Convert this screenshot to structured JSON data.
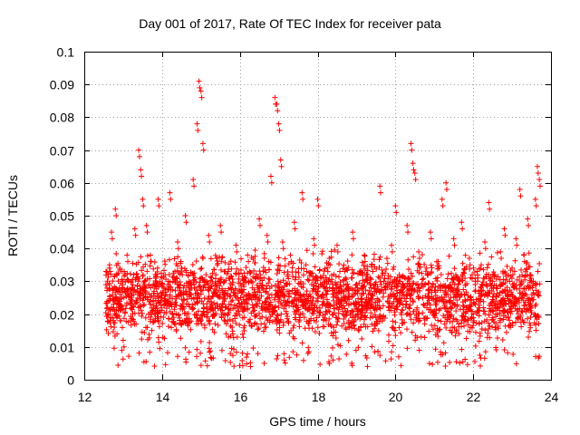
{
  "chart_data": {
    "type": "scatter",
    "title": "Day 001 of 2017, Rate Of TEC Index for receiver pata",
    "xlabel": "GPS time / hours",
    "ylabel": "ROTI / TECUs",
    "xlim": [
      12,
      24
    ],
    "ylim": [
      0,
      0.1
    ],
    "x_ticks": [
      "12",
      "14",
      "16",
      "18",
      "20",
      "22",
      "24"
    ],
    "y_ticks": [
      "0",
      "0.01",
      "0.02",
      "0.03",
      "0.04",
      "0.05",
      "0.06",
      "0.07",
      "0.08",
      "0.09",
      "0.1"
    ],
    "grid": true,
    "marker": "+",
    "color": "#ff0000",
    "series": [
      {
        "name": "ROTI",
        "x": [
          12.6,
          12.65,
          12.7,
          12.75,
          12.8,
          12.9,
          13.0,
          13.1,
          13.2,
          13.3,
          13.4,
          13.45,
          13.5,
          13.55,
          13.6,
          13.7,
          13.8,
          13.9,
          14.0,
          14.1,
          14.2,
          14.3,
          14.4,
          14.5,
          14.6,
          14.7,
          14.8,
          14.9,
          14.95,
          15.0,
          15.05,
          15.1,
          15.2,
          15.3,
          15.4,
          15.5,
          15.6,
          15.7,
          15.8,
          15.9,
          16.0,
          16.1,
          16.2,
          16.3,
          16.4,
          16.5,
          16.6,
          16.7,
          16.8,
          16.9,
          16.95,
          17.0,
          17.05,
          17.1,
          17.2,
          17.3,
          17.4,
          17.5,
          17.6,
          17.7,
          17.8,
          17.9,
          18.0,
          18.1,
          18.2,
          18.3,
          18.4,
          18.5,
          18.6,
          18.7,
          18.8,
          18.9,
          19.0,
          19.1,
          19.2,
          19.3,
          19.4,
          19.5,
          19.6,
          19.7,
          19.8,
          19.9,
          20.0,
          20.1,
          20.2,
          20.3,
          20.4,
          20.45,
          20.5,
          20.6,
          20.7,
          20.8,
          20.9,
          21.0,
          21.1,
          21.2,
          21.3,
          21.4,
          21.5,
          21.6,
          21.7,
          21.8,
          21.9,
          22.0,
          22.1,
          22.2,
          22.3,
          22.4,
          22.5,
          22.6,
          22.7,
          22.8,
          22.9,
          23.0,
          23.1,
          23.2,
          23.3,
          23.4,
          23.5,
          23.6,
          23.65,
          23.7
        ],
        "y": [
          0.022,
          0.035,
          0.045,
          0.018,
          0.052,
          0.028,
          0.012,
          0.038,
          0.024,
          0.046,
          0.07,
          0.064,
          0.055,
          0.03,
          0.047,
          0.038,
          0.02,
          0.055,
          0.031,
          0.026,
          0.057,
          0.019,
          0.042,
          0.034,
          0.05,
          0.028,
          0.061,
          0.078,
          0.091,
          0.088,
          0.072,
          0.03,
          0.044,
          0.022,
          0.037,
          0.047,
          0.024,
          0.033,
          0.016,
          0.041,
          0.027,
          0.021,
          0.038,
          0.03,
          0.025,
          0.049,
          0.033,
          0.044,
          0.062,
          0.086,
          0.084,
          0.078,
          0.067,
          0.042,
          0.029,
          0.038,
          0.048,
          0.022,
          0.057,
          0.035,
          0.026,
          0.043,
          0.055,
          0.031,
          0.02,
          0.037,
          0.028,
          0.041,
          0.024,
          0.033,
          0.018,
          0.045,
          0.029,
          0.021,
          0.038,
          0.026,
          0.035,
          0.019,
          0.059,
          0.03,
          0.024,
          0.041,
          0.053,
          0.032,
          0.028,
          0.047,
          0.072,
          0.066,
          0.063,
          0.039,
          0.025,
          0.034,
          0.045,
          0.021,
          0.036,
          0.055,
          0.06,
          0.029,
          0.043,
          0.031,
          0.048,
          0.024,
          0.037,
          0.02,
          0.033,
          0.028,
          0.042,
          0.054,
          0.03,
          0.022,
          0.039,
          0.046,
          0.026,
          0.034,
          0.043,
          0.058,
          0.038,
          0.049,
          0.03,
          0.055,
          0.065,
          0.061
        ]
      }
    ],
    "dense_band": {
      "x_start": 12.55,
      "x_end": 23.72,
      "y_low": 0.008,
      "y_high": 0.035
    }
  }
}
